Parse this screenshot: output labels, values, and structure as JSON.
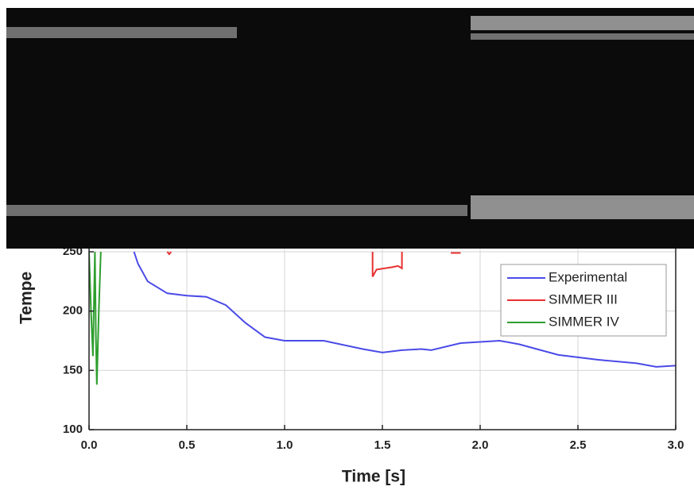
{
  "chart_data": {
    "type": "line",
    "y_label": "Tempe",
    "x_label": "Time [s]",
    "xlim": [
      0,
      3
    ],
    "xticks": [
      {
        "value": 0,
        "label": "0.0"
      },
      0.5,
      {
        "value": 1,
        "label": "1.0"
      },
      1.5,
      {
        "value": 2,
        "label": "2.0"
      },
      2.5,
      {
        "value": 3,
        "label": "3.0"
      }
    ],
    "ylim": [
      100,
      250
    ],
    "yticks": [
      100,
      150,
      200,
      250
    ],
    "grid": true,
    "legend": "upper right",
    "series": [
      {
        "name": "Experimental",
        "color": "#4a4ae8",
        "x": [
          0.23,
          0.25,
          0.3,
          0.4,
          0.5,
          0.6,
          0.7,
          0.8,
          0.9,
          1.0,
          1.2,
          1.4,
          1.5,
          1.6,
          1.7,
          1.75,
          1.9,
          2.0,
          2.1,
          2.2,
          2.4,
          2.6,
          2.8,
          2.9,
          3.0
        ],
        "values": [
          250,
          240,
          225,
          215,
          213,
          212,
          205,
          190,
          178,
          175,
          175,
          168,
          165,
          167,
          168,
          167,
          173,
          174,
          175,
          172,
          163,
          159,
          156,
          153,
          154
        ]
      },
      {
        "name": "SIMMER III",
        "color": "#e83030",
        "x": [
          0.4,
          0.41,
          0.42,
          null,
          1.45,
          1.45,
          1.47,
          1.55,
          1.58,
          1.6,
          1.6,
          null,
          1.85,
          1.9
        ],
        "values": [
          250,
          248,
          250,
          null,
          250,
          229,
          235,
          237,
          238,
          236,
          250,
          null,
          249,
          249
        ]
      },
      {
        "name": "SIMMER IV",
        "color": "#2e9e2e",
        "x": [
          0.0,
          0.01,
          0.02,
          0.03,
          0.035,
          0.04,
          0.05,
          0.06
        ],
        "values": [
          250,
          200,
          162,
          250,
          180,
          138,
          200,
          250
        ]
      }
    ]
  }
}
